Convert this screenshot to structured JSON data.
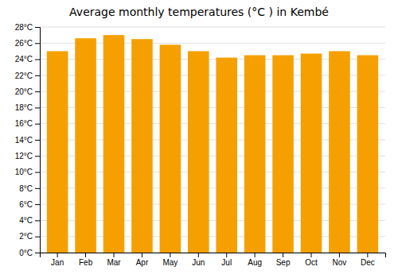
{
  "chart_data": {
    "type": "bar",
    "title": "Average monthly temperatures (°C ) in Kembé",
    "categories": [
      "Jan",
      "Feb",
      "Mar",
      "Apr",
      "May",
      "Jun",
      "Jul",
      "Aug",
      "Sep",
      "Oct",
      "Nov",
      "Dec"
    ],
    "values": [
      25.0,
      26.6,
      27.0,
      26.5,
      25.8,
      25.0,
      24.2,
      24.5,
      24.5,
      24.7,
      25.0,
      24.5
    ],
    "color": "#F5A000",
    "ylim": [
      0,
      28
    ],
    "yticks": [
      {
        "value": 0,
        "label": "0°C"
      },
      {
        "value": 2,
        "label": "2°C"
      },
      {
        "value": 4,
        "label": "4°C"
      },
      {
        "value": 6,
        "label": "6°C"
      },
      {
        "value": 8,
        "label": "8°C"
      },
      {
        "value": 10,
        "label": "10°C"
      },
      {
        "value": 12,
        "label": "12°C"
      },
      {
        "value": 14,
        "label": "14°C"
      },
      {
        "value": 16,
        "label": "16°C"
      },
      {
        "value": 18,
        "label": "18°C"
      },
      {
        "value": 20,
        "label": "20°C"
      },
      {
        "value": 22,
        "label": "22°C"
      },
      {
        "value": 24,
        "label": "24°C"
      },
      {
        "value": 26,
        "label": "26°C"
      },
      {
        "value": 28,
        "label": "28°C"
      }
    ],
    "grid": true
  }
}
